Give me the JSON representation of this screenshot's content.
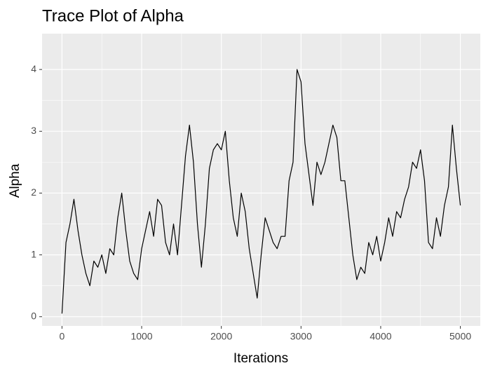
{
  "chart_data": {
    "type": "line",
    "title": "Trace Plot of Alpha",
    "x_label": "Iterations",
    "y_label": "Alpha",
    "x": [
      0,
      50,
      100,
      150,
      200,
      250,
      300,
      350,
      400,
      450,
      500,
      550,
      600,
      650,
      700,
      750,
      800,
      850,
      900,
      950,
      1000,
      1050,
      1100,
      1150,
      1200,
      1250,
      1300,
      1350,
      1400,
      1450,
      1500,
      1550,
      1600,
      1650,
      1700,
      1750,
      1800,
      1850,
      1900,
      1950,
      2000,
      2050,
      2100,
      2150,
      2200,
      2250,
      2300,
      2350,
      2400,
      2450,
      2500,
      2550,
      2600,
      2650,
      2700,
      2750,
      2800,
      2850,
      2900,
      2950,
      3000,
      3050,
      3100,
      3150,
      3200,
      3250,
      3300,
      3350,
      3400,
      3450,
      3500,
      3550,
      3600,
      3650,
      3700,
      3750,
      3800,
      3850,
      3900,
      3950,
      4000,
      4050,
      4100,
      4150,
      4200,
      4250,
      4300,
      4350,
      4400,
      4450,
      4500,
      4550,
      4600,
      4650,
      4700,
      4750,
      4800,
      4850,
      4900,
      4950,
      5000
    ],
    "series": [
      {
        "name": "Alpha",
        "color": "#000000",
        "values": [
          0.05,
          1.2,
          1.5,
          1.9,
          1.4,
          1.0,
          0.7,
          0.5,
          0.9,
          0.8,
          1.0,
          0.7,
          1.1,
          1.0,
          1.6,
          2.0,
          1.4,
          0.9,
          0.7,
          0.6,
          1.1,
          1.4,
          1.7,
          1.3,
          1.9,
          1.8,
          1.2,
          1.0,
          1.5,
          1.0,
          1.8,
          2.6,
          3.1,
          2.5,
          1.5,
          0.8,
          1.5,
          2.4,
          2.7,
          2.8,
          2.7,
          3.0,
          2.2,
          1.6,
          1.3,
          2.0,
          1.7,
          1.1,
          0.7,
          0.3,
          1.0,
          1.6,
          1.4,
          1.2,
          1.1,
          1.3,
          1.3,
          2.2,
          2.5,
          4.0,
          3.8,
          2.8,
          2.3,
          1.8,
          2.5,
          2.3,
          2.5,
          2.8,
          3.1,
          2.9,
          2.2,
          2.2,
          1.6,
          1.0,
          0.6,
          0.8,
          0.7,
          1.2,
          1.0,
          1.3,
          0.9,
          1.2,
          1.6,
          1.3,
          1.7,
          1.6,
          1.9,
          2.1,
          2.5,
          2.4,
          2.7,
          2.2,
          1.2,
          1.1,
          1.6,
          1.3,
          1.8,
          2.1,
          3.1,
          2.4,
          1.8
        ]
      }
    ],
    "xlim": [
      -250,
      5250
    ],
    "xticks": [
      0,
      1000,
      2000,
      3000,
      4000,
      5000
    ],
    "minor_xticks": [
      500,
      1500,
      2500,
      3500,
      4500
    ],
    "ylim": [
      -0.15,
      4.58
    ],
    "yticks": [
      0,
      1,
      2,
      3,
      4
    ],
    "minor_yticks": [
      0.5,
      1.5,
      2.5,
      3.5
    ],
    "grid": true
  }
}
